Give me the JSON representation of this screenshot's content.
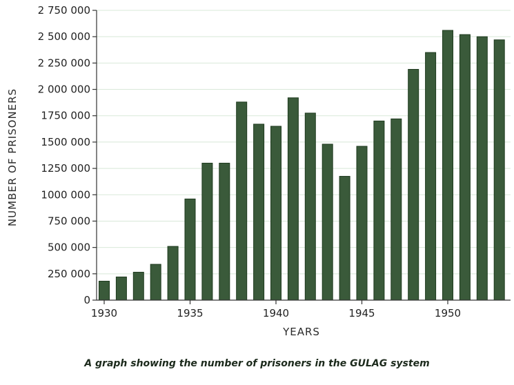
{
  "chart_data": {
    "type": "bar",
    "title": "",
    "xlabel": "YEARS",
    "ylabel": "NUMBER OF PRISONERS",
    "categories": [
      1930,
      1931,
      1932,
      1933,
      1934,
      1935,
      1936,
      1937,
      1938,
      1939,
      1940,
      1941,
      1942,
      1943,
      1944,
      1945,
      1946,
      1947,
      1948,
      1949,
      1950,
      1951,
      1952,
      1953
    ],
    "values": [
      180000,
      220000,
      265000,
      340000,
      510000,
      960000,
      1300000,
      1300000,
      1880000,
      1670000,
      1650000,
      1920000,
      1775000,
      1480000,
      1175000,
      1460000,
      1700000,
      1720000,
      2190000,
      2350000,
      2560000,
      2520000,
      2500000,
      2470000
    ],
    "ylim": [
      0,
      2750000
    ],
    "yticks": [
      0,
      250000,
      500000,
      750000,
      1000000,
      1250000,
      1500000,
      1750000,
      2000000,
      2250000,
      2500000,
      2750000
    ],
    "ytick_labels": [
      "0",
      "250 000",
      "500 000",
      "750 000",
      "1000 000",
      "1250 000",
      "1500 000",
      "1750 000",
      "2 000 000",
      "2 250 000",
      "2 500 000",
      "2 750 000"
    ],
    "xticks": [
      1930,
      1935,
      1940,
      1945,
      1950
    ],
    "xtick_labels": [
      "1930",
      "1935",
      "1940",
      "1945",
      "1950"
    ],
    "grid": true,
    "bar_color": "#3a5a3a",
    "grid_color": "#d8e8d8"
  },
  "caption": "A graph showing the number of prisoners in the GULAG system"
}
